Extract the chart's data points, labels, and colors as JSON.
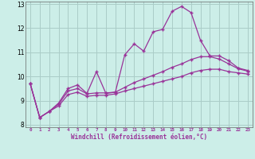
{
  "xlabel": "Windchill (Refroidissement éolien,°C)",
  "background_color": "#cceee8",
  "grid_color": "#aaccc8",
  "line_color": "#993399",
  "xlim": [
    -0.5,
    23.5
  ],
  "ylim": [
    7.9,
    13.1
  ],
  "yticks": [
    8,
    9,
    10,
    11,
    12,
    13
  ],
  "xticks": [
    0,
    1,
    2,
    3,
    4,
    5,
    6,
    7,
    8,
    9,
    10,
    11,
    12,
    13,
    14,
    15,
    16,
    17,
    18,
    19,
    20,
    21,
    22,
    23
  ],
  "curve1_x": [
    0,
    1,
    2,
    3,
    4,
    5,
    6,
    7,
    8,
    9,
    10,
    11,
    12,
    13,
    14,
    15,
    16,
    17,
    18,
    19,
    20,
    21,
    22,
    23
  ],
  "curve1_y": [
    9.7,
    8.3,
    8.55,
    8.9,
    9.5,
    9.65,
    9.3,
    10.2,
    9.3,
    9.35,
    10.9,
    11.35,
    11.05,
    11.85,
    11.95,
    12.7,
    12.9,
    12.65,
    11.5,
    10.85,
    10.85,
    10.65,
    10.35,
    10.25
  ],
  "curve2_x": [
    0,
    1,
    2,
    3,
    4,
    5,
    6,
    7,
    8,
    9,
    10,
    11,
    12,
    13,
    14,
    15,
    16,
    17,
    18,
    19,
    20,
    21,
    22,
    23
  ],
  "curve2_y": [
    9.7,
    8.3,
    8.55,
    8.85,
    9.4,
    9.5,
    9.28,
    9.32,
    9.32,
    9.35,
    9.55,
    9.75,
    9.9,
    10.05,
    10.2,
    10.38,
    10.52,
    10.7,
    10.82,
    10.82,
    10.72,
    10.52,
    10.32,
    10.22
  ],
  "curve3_x": [
    0,
    1,
    2,
    3,
    4,
    5,
    6,
    7,
    8,
    9,
    10,
    11,
    12,
    13,
    14,
    15,
    16,
    17,
    18,
    19,
    20,
    21,
    22,
    23
  ],
  "curve3_y": [
    9.7,
    8.3,
    8.55,
    8.78,
    9.25,
    9.35,
    9.18,
    9.22,
    9.22,
    9.28,
    9.4,
    9.5,
    9.6,
    9.7,
    9.8,
    9.9,
    10.0,
    10.15,
    10.25,
    10.3,
    10.3,
    10.2,
    10.15,
    10.1
  ]
}
